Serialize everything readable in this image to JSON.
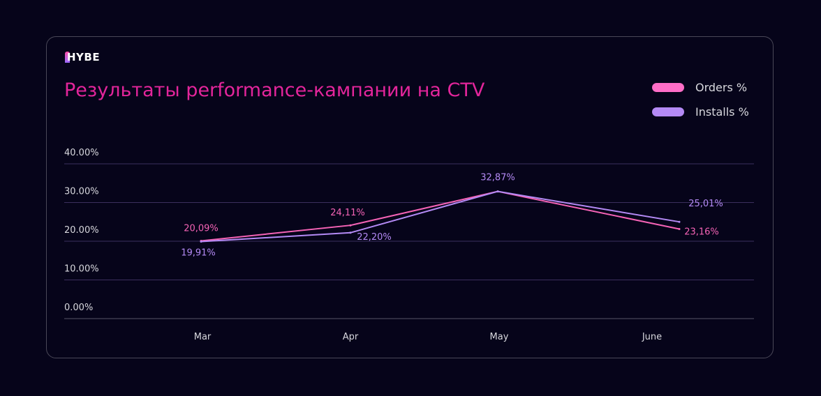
{
  "logo": {
    "text": "HYBE"
  },
  "chart_data": {
    "type": "line",
    "title": "Результаты performance-кампании на CTV",
    "categories": [
      "Mar",
      "Apr",
      "May",
      "June"
    ],
    "ylim": [
      0,
      40
    ],
    "yticks": [
      "0.00%",
      "10.00%",
      "20.00%",
      "30.00%",
      "40.00%"
    ],
    "grid": true,
    "legend_position": "top-right",
    "series": [
      {
        "name": "Orders %",
        "color": "#f563b6",
        "values": [
          20.09,
          24.11,
          32.87,
          23.16
        ],
        "labels": [
          "20,09%",
          "24,11%",
          null,
          "23,16%"
        ]
      },
      {
        "name": "Installs %",
        "color": "#b48af5",
        "values": [
          19.91,
          22.2,
          32.87,
          25.01
        ],
        "labels": [
          "19,91%",
          "22,20%",
          "32,87%",
          "25,01%"
        ]
      }
    ]
  }
}
